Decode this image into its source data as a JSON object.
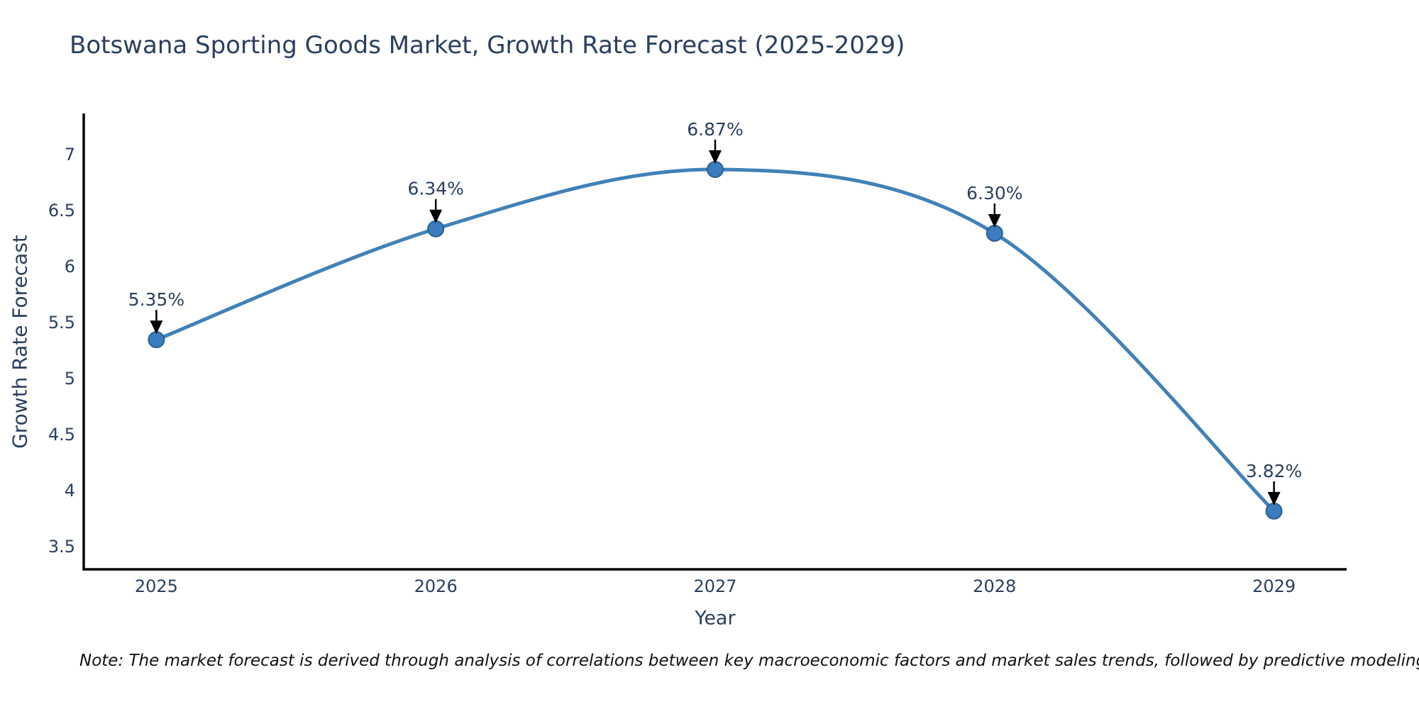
{
  "title": "Botswana Sporting Goods Market, Growth Rate Forecast (2025-2029)",
  "note": "Note: The market forecast is derived through analysis of correlations between key macroeconomic factors and market sales trends, followed by predictive modeling to project future sales",
  "chart_data": {
    "type": "line",
    "title": "Botswana Sporting Goods Market, Growth Rate Forecast (2025-2029)",
    "xlabel": "Year",
    "ylabel": "Growth Rate Forecast",
    "x": [
      2025,
      2026,
      2027,
      2028,
      2029
    ],
    "values": [
      5.35,
      6.34,
      6.87,
      6.3,
      3.82
    ],
    "point_labels": [
      "5.35%",
      "6.34%",
      "6.87%",
      "6.30%",
      "3.82%"
    ],
    "yticks": [
      3.5,
      4,
      4.5,
      5,
      5.5,
      6,
      6.5,
      7
    ],
    "xtick_labels": [
      "2025",
      "2026",
      "2027",
      "2028",
      "2029"
    ],
    "ylim": [
      3.3,
      7.37
    ],
    "grid": false,
    "legend": null,
    "line_smoothing": "spline",
    "colors": {
      "line": "#4181b8",
      "marker_fill": "#3c7dbd",
      "marker_edge": "#2b5f94",
      "axis": "#000000",
      "text": "#2a3f5f",
      "annotation_arrow": "#000000",
      "note_text": "#111111",
      "background": "#ffffff"
    }
  }
}
